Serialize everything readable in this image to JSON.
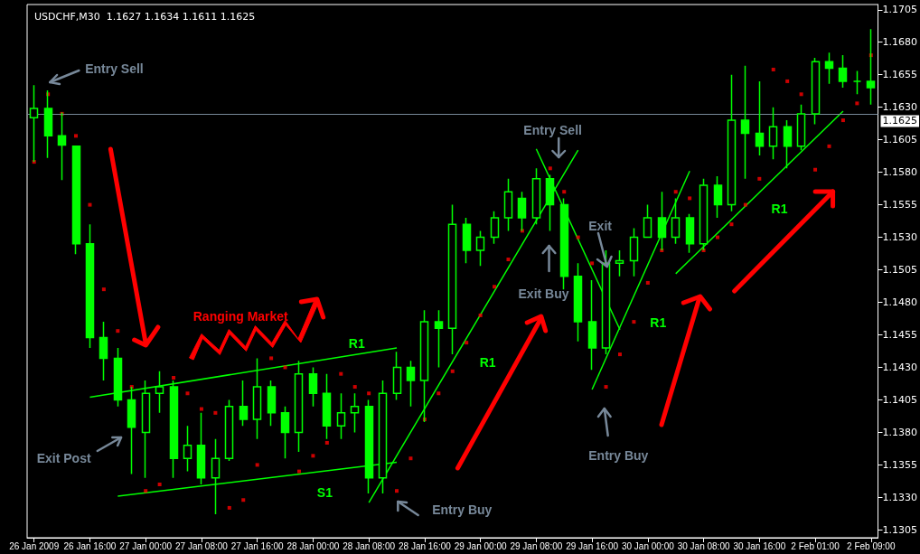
{
  "chart_data": {
    "type": "candlestick",
    "title": "USDCHF,M30  1.1627 1.1634 1.1611 1.1625",
    "color": "#00ff00",
    "categories": [
      "26 Jan 2009",
      null,
      null,
      null,
      "26 Jan 16:00",
      null,
      null,
      null,
      "27 Jan 00:00",
      null,
      null,
      null,
      "27 Jan 08:00",
      null,
      null,
      null,
      "27 Jan 16:00",
      null,
      null,
      null,
      "28 Jan 00:00",
      null,
      null,
      null,
      "28 Jan 08:00",
      null,
      null,
      null,
      "28 Jan 16:00",
      null,
      null,
      null,
      "29 Jan 00:00",
      null,
      null,
      null,
      "29 Jan 08:00",
      null,
      null,
      null,
      "29 Jan 16:00",
      null,
      null,
      null,
      "30 Jan 00:00",
      null,
      null,
      null,
      "30 Jan 08:00",
      null,
      null,
      null,
      "30 Jan 16:00",
      null,
      null,
      null,
      "2 Feb 01:00",
      null,
      null,
      null,
      "2 Feb 09:00"
    ],
    "ohlc": [
      [
        1.1622,
        1.1647,
        1.1588,
        1.1629
      ],
      [
        1.1629,
        1.1643,
        1.1591,
        1.1608
      ],
      [
        1.1608,
        1.1626,
        1.1574,
        1.1601
      ],
      [
        1.16,
        1.16,
        1.1517,
        1.1525
      ],
      [
        1.1525,
        1.154,
        1.1445,
        1.1453
      ],
      [
        1.1453,
        1.1465,
        1.142,
        1.1437
      ],
      [
        1.1437,
        1.1445,
        1.14,
        1.1405
      ],
      [
        1.1405,
        1.1415,
        1.1348,
        1.1384
      ],
      [
        1.138,
        1.142,
        1.1345,
        1.141
      ],
      [
        1.141,
        1.1427,
        1.1395,
        1.1415
      ],
      [
        1.1415,
        1.142,
        1.1345,
        1.136
      ],
      [
        1.136,
        1.1385,
        1.135,
        1.137
      ],
      [
        1.137,
        1.1395,
        1.134,
        1.1345
      ],
      [
        1.1345,
        1.1375,
        1.1317,
        1.136
      ],
      [
        1.136,
        1.1405,
        1.1358,
        1.14
      ],
      [
        1.14,
        1.142,
        1.1385,
        1.139
      ],
      [
        1.139,
        1.1437,
        1.1375,
        1.1415
      ],
      [
        1.1415,
        1.142,
        1.1385,
        1.1395
      ],
      [
        1.1395,
        1.14,
        1.136,
        1.138
      ],
      [
        1.138,
        1.1435,
        1.1365,
        1.1425
      ],
      [
        1.1425,
        1.143,
        1.14,
        1.141
      ],
      [
        1.141,
        1.1425,
        1.1375,
        1.1385
      ],
      [
        1.1385,
        1.141,
        1.1375,
        1.1395
      ],
      [
        1.1395,
        1.141,
        1.138,
        1.14
      ],
      [
        1.14,
        1.1405,
        1.1333,
        1.1345
      ],
      [
        1.1345,
        1.142,
        1.1333,
        1.141
      ],
      [
        1.141,
        1.1442,
        1.1405,
        1.143
      ],
      [
        1.143,
        1.1435,
        1.14,
        1.142
      ],
      [
        1.142,
        1.1474,
        1.1388,
        1.1465
      ],
      [
        1.1465,
        1.1474,
        1.143,
        1.146
      ],
      [
        1.146,
        1.1555,
        1.144,
        1.154
      ],
      [
        1.154,
        1.1545,
        1.151,
        1.152
      ],
      [
        1.152,
        1.1535,
        1.1508,
        1.153
      ],
      [
        1.153,
        1.155,
        1.1525,
        1.1545
      ],
      [
        1.1545,
        1.1575,
        1.1535,
        1.1565
      ],
      [
        1.156,
        1.1565,
        1.1535,
        1.1545
      ],
      [
        1.1545,
        1.1583,
        1.154,
        1.1575
      ],
      [
        1.1575,
        1.1578,
        1.1535,
        1.1555
      ],
      [
        1.1555,
        1.156,
        1.149,
        1.15
      ],
      [
        1.15,
        1.151,
        1.145,
        1.1465
      ],
      [
        1.1465,
        1.1497,
        1.1428,
        1.1445
      ],
      [
        1.1445,
        1.152,
        1.144,
        1.151
      ],
      [
        1.151,
        1.152,
        1.15,
        1.1512
      ],
      [
        1.1512,
        1.1537,
        1.15,
        1.153
      ],
      [
        1.153,
        1.1555,
        1.153,
        1.1545
      ],
      [
        1.1545,
        1.1565,
        1.152,
        1.153
      ],
      [
        1.153,
        1.156,
        1.1525,
        1.1545
      ],
      [
        1.1545,
        1.1548,
        1.1518,
        1.1525
      ],
      [
        1.1525,
        1.1575,
        1.152,
        1.157
      ],
      [
        1.157,
        1.1577,
        1.1545,
        1.1555
      ],
      [
        1.1555,
        1.1655,
        1.155,
        1.162
      ],
      [
        1.162,
        1.1662,
        1.1575,
        1.161
      ],
      [
        1.161,
        1.165,
        1.1593,
        1.16
      ],
      [
        1.16,
        1.163,
        1.159,
        1.1615
      ],
      [
        1.1615,
        1.162,
        1.1583,
        1.16
      ],
      [
        1.16,
        1.1632,
        1.1597,
        1.1625
      ],
      [
        1.1625,
        1.1668,
        1.1617,
        1.1665
      ],
      [
        1.1665,
        1.1672,
        1.1648,
        1.166
      ],
      [
        1.166,
        1.167,
        1.1645,
        1.165
      ],
      [
        1.165,
        1.1658,
        1.164,
        1.165
      ],
      [
        1.165,
        1.169,
        1.1632,
        1.1645
      ]
    ],
    "series": [
      {
        "type": "scatter",
        "color": "#ff0000",
        "marker": "square",
        "values": [
          1.1588,
          1.164,
          1.1625,
          1.1608,
          1.1555,
          1.149,
          1.1458,
          1.1415,
          1.1335,
          1.134,
          1.1422,
          1.141,
          1.1398,
          1.1395,
          1.1322,
          1.1328,
          1.1355,
          1.1437,
          1.143,
          1.135,
          1.1362,
          1.1372,
          1.1425,
          1.1415,
          1.141,
          null,
          1.1335,
          1.136,
          1.139,
          1.141,
          1.1427,
          1.1449,
          1.147,
          1.1492,
          1.1513,
          1.1535,
          null,
          1.1583,
          1.1565,
          1.153,
          1.151,
          1.1415,
          1.144,
          1.1465,
          1.1495,
          1.152,
          1.1565,
          1.156,
          1.152,
          1.153,
          1.154,
          1.1555,
          1.1575,
          1.1659,
          1.165,
          1.164,
          1.1582,
          1.16,
          1.162,
          1.1633,
          1.167
        ]
      },
      {
        "type": "line",
        "color": "#00ff00",
        "values": [
          null,
          null,
          null,
          null,
          1.1407,
          null,
          null,
          null,
          null,
          null,
          null,
          null,
          null,
          null,
          null,
          null,
          null,
          null,
          null,
          null,
          null,
          null,
          null,
          null,
          null,
          null,
          1.1445,
          null,
          null,
          null,
          null,
          null,
          null,
          null,
          null,
          null,
          null,
          null,
          null,
          null,
          null,
          null,
          null,
          null,
          null,
          null,
          null,
          null,
          null,
          null,
          null,
          null,
          null,
          null,
          null,
          null,
          null,
          null,
          null,
          null,
          null
        ]
      },
      {
        "type": "line",
        "color": "#00ff00",
        "values": [
          null,
          null,
          null,
          null,
          null,
          null,
          1.1331,
          null,
          null,
          null,
          null,
          null,
          null,
          null,
          null,
          null,
          null,
          null,
          null,
          null,
          null,
          null,
          null,
          null,
          null,
          null,
          1.1357,
          null,
          null,
          null,
          null,
          null,
          null,
          null,
          null,
          null,
          null,
          null,
          null,
          null,
          null,
          null,
          null,
          null,
          null,
          null,
          null,
          null,
          null,
          null,
          null,
          null,
          null,
          null,
          null,
          null,
          null,
          null,
          null,
          null,
          null
        ]
      },
      {
        "type": "line",
        "color": "#00ff00",
        "values": [
          null,
          null,
          null,
          null,
          null,
          null,
          null,
          null,
          null,
          null,
          null,
          null,
          null,
          null,
          null,
          null,
          null,
          null,
          null,
          null,
          null,
          null,
          null,
          null,
          1.1326,
          null,
          null,
          null,
          null,
          null,
          null,
          null,
          null,
          null,
          null,
          null,
          null,
          null,
          null,
          1.1597,
          null,
          null,
          null,
          null,
          null,
          null,
          null,
          null,
          null,
          null,
          null,
          null,
          null,
          null,
          null,
          null,
          null,
          null,
          null,
          null,
          null
        ]
      },
      {
        "type": "line",
        "color": "#00ff00",
        "values": [
          null,
          null,
          null,
          null,
          null,
          null,
          null,
          null,
          null,
          null,
          null,
          null,
          null,
          null,
          null,
          null,
          null,
          null,
          null,
          null,
          null,
          null,
          null,
          null,
          null,
          null,
          null,
          null,
          null,
          null,
          null,
          null,
          null,
          null,
          null,
          null,
          1.1598,
          null,
          null,
          null,
          null,
          null,
          1.1459,
          null,
          null,
          null,
          null,
          null,
          null,
          null,
          null,
          null,
          null,
          null,
          null,
          null,
          null,
          null,
          null,
          null,
          null
        ]
      },
      {
        "type": "line",
        "color": "#00ff00",
        "values": [
          null,
          null,
          null,
          null,
          null,
          null,
          null,
          null,
          null,
          null,
          null,
          null,
          null,
          null,
          null,
          null,
          null,
          null,
          null,
          null,
          null,
          null,
          null,
          null,
          null,
          null,
          null,
          null,
          null,
          null,
          null,
          null,
          null,
          null,
          null,
          null,
          null,
          null,
          null,
          null,
          1.1413,
          null,
          null,
          null,
          null,
          null,
          null,
          1.1581,
          null,
          null,
          null,
          null,
          null,
          null,
          null,
          null,
          null,
          null,
          null,
          null,
          null
        ]
      },
      {
        "type": "line",
        "color": "#00ff00",
        "values": [
          null,
          null,
          null,
          null,
          null,
          null,
          null,
          null,
          null,
          null,
          null,
          null,
          null,
          null,
          null,
          null,
          null,
          null,
          null,
          null,
          null,
          null,
          null,
          null,
          null,
          null,
          null,
          null,
          null,
          null,
          null,
          null,
          null,
          null,
          null,
          null,
          null,
          null,
          null,
          null,
          null,
          null,
          null,
          null,
          null,
          null,
          1.1502,
          null,
          null,
          null,
          null,
          null,
          null,
          null,
          null,
          null,
          null,
          null,
          1.1627,
          null,
          null
        ]
      }
    ],
    "ylim": [
      1.1299,
      1.1709
    ],
    "yticks": [
      1.1305,
      {
        "value": 1.133,
        "label": "1.1330"
      },
      1.1355,
      {
        "value": 1.138,
        "label": "1.1380"
      },
      1.1405,
      {
        "value": 1.143,
        "label": "1.1430"
      },
      1.1455,
      {
        "value": 1.148,
        "label": "1.1480"
      },
      1.1505,
      {
        "value": 1.153,
        "label": "1.1530"
      },
      1.1555,
      {
        "value": 1.158,
        "label": "1.1580"
      },
      1.1605,
      {
        "value": 1.163,
        "label": "1.1630"
      },
      1.1655,
      {
        "value": 1.168,
        "label": "1.1680"
      },
      1.1705
    ],
    "ref_lines": [
      {
        "axis": "y",
        "value": 1.1625,
        "label": "1.1625",
        "color": "#778899"
      }
    ],
    "annotations": [
      "Entry Sell",
      "Ranging Market",
      "R1",
      "S1",
      "Exit Post",
      "Entry Buy",
      "R1",
      "Entry Sell",
      "Exit Buy",
      "Exit",
      "R1",
      "Entry Buy",
      "R1"
    ]
  }
}
